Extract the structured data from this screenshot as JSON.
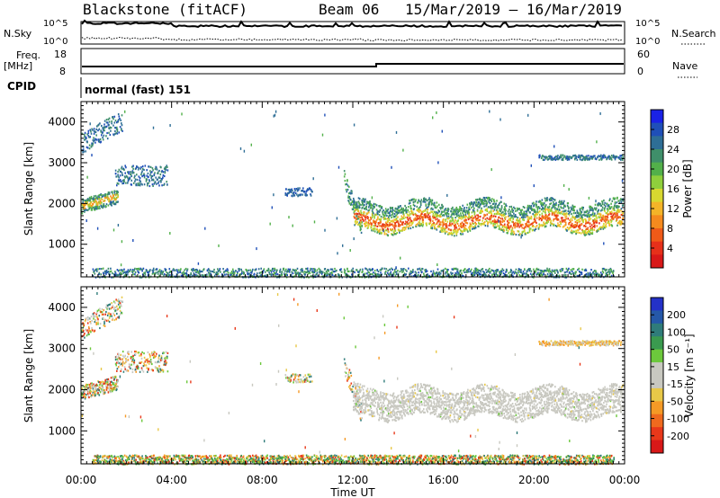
{
  "header": {
    "station": "Blackstone (fitACF)",
    "beam": "Beam 06",
    "date_range": "15/Mar/2019 – 16/Mar/2019"
  },
  "top_panels": {
    "nsky_label": "N.Sky",
    "nsky_hi": "10^5",
    "nsky_lo": "10^0",
    "nsearch_label": "N.Search",
    "nsearch_hi": "10^5",
    "nsearch_lo": "10^0",
    "freq_label": "Freq.",
    "freq_unit": "[MHz]",
    "freq_hi": "18",
    "freq_lo": "8",
    "nave_label": "Nave",
    "nave_hi": "60",
    "nave_lo": "0",
    "cpid_label": "CPID",
    "cpid_text": "normal (fast) 151"
  },
  "chart_data": [
    {
      "type": "heatmap",
      "name": "power",
      "ylabel": "Slant Range [km]",
      "ylim": [
        200,
        4500
      ],
      "yticks": [
        1000,
        2000,
        3000,
        4000
      ],
      "colorbar_label": "Power [dB]",
      "colorbar_ticks": [
        "4",
        "8",
        "12",
        "16",
        "20",
        "24",
        "28"
      ],
      "colorbar_colors": [
        "#1a22e6",
        "#1f4fb8",
        "#2e6e96",
        "#3f8f6a",
        "#52b04a",
        "#8fcf3c",
        "#d8d830",
        "#f4b428",
        "#f58a1e",
        "#ef5a18",
        "#e6301a",
        "#d81818"
      ]
    },
    {
      "type": "heatmap",
      "name": "velocity",
      "ylabel": "Slant Range [km]",
      "ylim": [
        200,
        4500
      ],
      "yticks": [
        1000,
        2000,
        3000,
        4000
      ],
      "colorbar_label": "Velocity [m s⁻¹]",
      "colorbar_ticks": [
        "200",
        "100",
        "50",
        "15",
        "-15",
        "-50",
        "-100",
        "-200"
      ],
      "colorbar_colors": [
        "#2431c8",
        "#2558a8",
        "#2f7c7a",
        "#3a9a4f",
        "#6cc83c",
        "#c8c8c0",
        "#c8c8c0",
        "#e8c848",
        "#f59a26",
        "#ef6a1e",
        "#e8381a",
        "#d81818"
      ]
    }
  ],
  "xaxis": {
    "label": "Time UT",
    "ticks": [
      "00:00",
      "04:00",
      "08:00",
      "12:00",
      "16:00",
      "20:00",
      "00:00"
    ]
  }
}
